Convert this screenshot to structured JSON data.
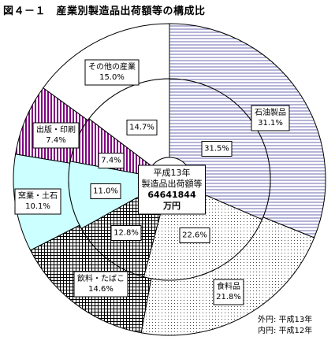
{
  "title": "図４－１　産業別製造品出荷額等の構成比",
  "center_label": {
    "line1": "平成13年",
    "line2": "製造品出荷額等",
    "line3": "64641844",
    "line4": "万円"
  },
  "legend_notes": {
    "outer": "外円:  平成13年",
    "inner": "内円:  平成12年"
  },
  "chart_data": {
    "type": "pie",
    "description_rings": [
      "outer",
      "inner"
    ],
    "categories": [
      "石油製品",
      "食料品",
      "飲料・たばこ",
      "窯業・土石",
      "出版・印刷",
      "その他の産業"
    ],
    "series": [
      {
        "name": "平成13年",
        "values": [
          31.1,
          21.8,
          14.6,
          10.1,
          7.4,
          15.0
        ],
        "labels": [
          "31.1%",
          "21.8%",
          "14.6%",
          "10.1%",
          "7.4%",
          "15.0%"
        ]
      },
      {
        "name": "平成12年",
        "values": [
          31.5,
          22.6,
          12.8,
          11.0,
          7.4,
          14.7
        ],
        "labels": [
          "31.5%",
          "22.6%",
          "12.8%",
          "11.0%",
          "7.4%",
          "14.7%"
        ]
      }
    ],
    "patterns": [
      "horizontal-lines",
      "dots",
      "grid",
      "cyan-fill",
      "purple-vertical-lines",
      "white"
    ],
    "colors": {
      "purple": "#800080",
      "cyan": "#ccffff",
      "stroke": "#000000"
    }
  }
}
